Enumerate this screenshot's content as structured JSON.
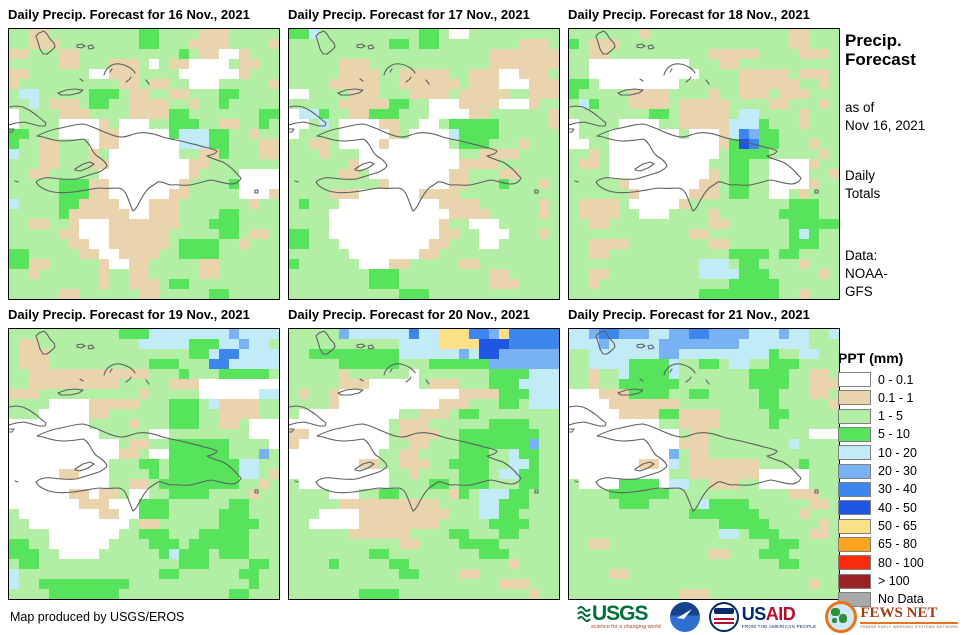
{
  "palette": {
    "w": "#ffffff",
    "t": "#e9d4ae",
    "g": "#b2efa4",
    "G": "#57e45c",
    "c": "#c2ebf8",
    "b": "#79b2f2",
    "B": "#3c86ee",
    "D": "#1e56e6",
    "y": "#fbe085",
    "o": "#fca41c",
    "r": "#fb2b0d",
    "R": "#9b2222",
    "n": "#a9a9a9"
  },
  "panels": [
    {
      "title": "Daily Precip. Forecast for 16 Nov., 2021",
      "grid": [
        "ggttgggggggggGGggggtttggggg",
        "ggtttggggggggGGgggttttggggt",
        "ttgggttggggggggggGgttwwtggg",
        "gggggttgggtttgwgttwwwwgttgg",
        "ttggggggwwtttggggwwwwwwtggg",
        "tggggggggggttgttggwwwgggggtt",
        "gccgggggGGGgttggttgggGGgggg",
        "ggcgtttgGGggttttggtggGggggg",
        "wggggtttggggttttGGgggggggGG",
        "wggggwwwwtgwwwggGGGggttggGg",
        "GGgggwwwwttwwwwwGcccGGggtgg",
        "GggttgggwttwwwwwwcccGGgggtt",
        "cggttgggtgwwwwwwwggttGgggtt",
        "gggttgggttwwwwwwwwttggggggg",
        "ggttgggggwwwwwwwwwtggggwwww",
        "gggggGGGttwwwwwwwtggggGwwww",
        "gggggGGGttwwwwwwttgggggwwwt",
        "cggggGGttttwwwtttgggggggtgg",
        "gggggGttttttwwtttggggGGgggg",
        "ggttggtwwwtttttttgggGGGgggg",
        "gggggttwwwttttttgggggGGgttg",
        "ggggggttwwttttttgGGGGggtggg",
        "GGgggggttwwttttggGGGGgggggg",
        "GGttgggggtwwttgggggttgggggg",
        "ggtggggggtggttgggggttgggggg",
        "gggggggggtggtttgGGggggggggg",
        "gggggttggggggttgggggGGggggg"
      ]
    },
    {
      "title": "Daily Precip. Forecast for 17 Nov., 2021",
      "grid": [
        "GGcggggggggggGGgwwggggggggg",
        "ggggggggggGGgGGggggggggtttg",
        "ggggggggggggggggggggttttttt",
        "gggggtttggggggggggggtttttttg",
        "gggggttttggtttttggtttwwtttg",
        "ggggtttttggttttttgtttwwwttt",
        "wwggggtttgggttttgtttttggttt",
        "gggggtttttGGggwwwttttwwwtgg",
        "wccGggttGGGgggwwwwttggggggt",
        "wwgcgwwwwttggwwgGGGGGgggggt",
        "wggggwwwwwtgwwwwcGGGGgggggg",
        "ggttgwwwwtwwwwwwgGGGgggtggg",
        "gggtgggwwwwwwwwwwggttttgggg",
        "ggggggtwwwwwwwwwwttttgggggg",
        "gggggttgwwwwwwwwttgggttgggg",
        "gggggggggtwwwwwwttgggGgggtg",
        "ggggtttwwwwwwttttgggggggggg",
        "gGgggwwwwwwwwwwttttggggggtg",
        "ggggwwwwwwwwwwwwttttgggggtg",
        "ggggwwwwwwwwwwwtggwwwggggg g",
        "GGggwwwwwwwwwwwttggwwwgggtg",
        "GGgggwwwwwwwwwttgggwwgggggg",
        "ggggggwwwwwwwttgggggggggggg",
        "Gggggggwwwttgggggttgggggggg",
        "ggggggggGGGgggggggggttggggg",
        "ggggggggGGGgggggggggtttgggg",
        "gggggggggggGGGgggggggggggg g"
      ]
    },
    {
      "title": "Daily Precip. Forecast for 18 Nov., 2021",
      "grid": [
        "gggggggtggggggggggggggttggg",
        "Ggtttgggggggggggggggggttggg",
        "ggttggggggggggtttttggggtttg",
        "ggwwwwwwwwwwgggttgggggggggg",
        "ggwwwwwwwwwwwggggtttttgtttg",
        "GGgwwwwwwwwggggggttttttggtg",
        "Ggggggttttggggtggtttgtttggg",
        "gcGgggttttgtttttggggttgggtg",
        "ggggggggGGgtttttgccggggtggg",
        "wggggwwwwggtttttcccGgggtggg",
        "wgggwwwwwwwgwwwtcBbGGgggggg",
        "wwggwwwwwwwwwwwtGDBGGgggtgg",
        "ggtgwwwwwwwwwwwgGGGGgggggtg",
        "gttgwwwwwwwwwwggGGggwwwwtgg",
        "ggggwwwwwwwwwwtgGGggwwwwggt",
        "gggggtwwwwwwwttgGGggwwwwtgg",
        "ggggggtwwwwwtttgGGggwwgtggg",
        "gttttgwwwwwtggggggggggGGGgg",
        "gttttggwwwggggtggggggGGGGgg",
        "ggttggggggggggttggggggGGGGGgg",
        "ggggggggggggttggggggggGcGgg",
        "ggttttggggggggttggggggGGGggg",
        "ggttggggggggggggGGGGgGGgggg",
        "gggggggggggggcccgGGggggtggg",
        "ggttgggggggggccccGGGgggggtg",
        "ggtgggggggggggggGGGGGgggggg",
        "gggggggggggggGGGGGGGGggtggg"
      ]
    },
    {
      "title": "Daily Precip. Forecast for 19 Nov., 2021",
      "grid": [
        "gggggggggggGGGccccccccbcccc",
        "gttggggggggggcccccGGGccbcc",
        "gtttggggggggggggggGGcBBccccc",
        "gtttggggggggggGGGgggBBccccc",
        "ggttttttttttttgggGgggGGGGGg",
        "ggtttttttttgggggtttwwwwwwww",
        "tttggggggggggtgggggwwwwwwcc",
        "ggggwwwwtttttgggGGGgcttttgg",
        "gggwwwwwttggggggGGGggttttgg",
        "wwwwwwwwggggtgggGGGggttgwww",
        "wwwwwwwwwgggggwwggggggggwww",
        "wwwwwwwwwwwgttggGGGGGGggggw",
        "wwwwwwwwwwwttgwwGGGGGGgggbg",
        "wwwwwwwwwwgggGGgGGGGGGGccgg",
        "wwwwwttwwwggggGgGGGGGGGccgt",
        "wwwwwwwwwwggttgGGGGGGGGggtg",
        "wwwwwwttwttgwwggGGGGggggtgg",
        "wwwwwwwtttwwwGGGggggggGGggg",
        "gwwwwwwwwttwwGGGgggggGGGggg",
        "ggwwwwwwwwwwgttggggggGGGGggg",
        "ggggwwwwwwwggGGGgggGGGGGggg",
        "GGggwwwwwwggggGGGgGGGGGGggg",
        "GGGggwwwwggggggGcGGGgGGGggg",
        "gGGggggggggggggggGGGggggGGg",
        "cggggggggggggggGGggggggGGggg",
        "cggGGGGGGGGGggggggggggggGgg",
        "ggggGGGGGGGgggggggggggGGgggg"
      ]
    },
    {
      "title": "Daily Precip. Forecast for 20 Nov., 2021",
      "grid": [
        "gggggbccccccBccyyyBBbyBBBBB",
        "gggggggggggccccyyyyDDDBBBBB",
        "ggGGGGGGGGGccccccbcDDbbbbbb",
        "gggggGGGGGGgggGGGGGGbbbbbbb",
        "gggggtggggggwgggggggGGGGccc",
        "gggggtttwwwwwgtttgggGGGcccc",
        "gtggtwwwwwwwwwwwwttttGGGccc",
        "ggggtwwwwwwwwwwtttgggGGgccc",
        "gwwwwwwwwwwggtttgGGgggggggg",
        "wwwwwwwwwwgtttggggggGGGGggg",
        "ttwwwwwwwwgttttggGGGGGGGGgg",
        "twwwwwwwwwggttgggGGGGGGGbgg",
        "wwwwwwwwwggttggggGGGggcGGgg",
        "wwwwwwwttggtttggGGGGggccGgg",
        "wwwwwwwwwwggtggggGGGgccGGgg",
        "gwwwwwwwwwggggGGgGGGgggGGgg",
        "ggggwwwggGGgggggtGgcccGGggg",
        "gggggttttttttttggggccGGGggg",
        "gggwwwwtttttttttgggccGGgggg",
        "ggwwwwwttttttttgggggGGGGggg",
        "ggggggttttttggggGGgggGGgggg",
        "gggggggggggttggggGGGGgggggg",
        "ggggggggGGgggggggggGGGgggggg",
        "ggggGgggggGGggggggggggtgggg",
        "gggggggggggGGggggttggggggggg",
        "gggggggggggggggggggggtttggg",
        "gggggggGGGGgggggggggggggtgg"
      ]
    },
    {
      "title": "Daily Precip. Forecast for 21 Nov., 2021",
      "grid": [
        "ccbBBbbbccbbBBbbbbcccbccggc",
        "cccbcccccbbbbbbbbcccccccggg",
        "ggcccccccbbcccccccccGggccgg",
        "ggccccGGGGcggGGgccggGGGgggg",
        "ggtggcGGGGcgggggggGGGGggttg",
        "ggtggGGGGGGgggggggGGGGggttt",
        "wwwtttGGGGggGGgggggGGgggttg",
        "wwwwtttttttggggggggGGgggggt",
        "wwwwwttttGGttttgggggGGggggg",
        "wwwwwwwwwggttttgggggGgggggg",
        "wwwwwwwwwwwgttggggggggggwww",
        "wwwwwwwwwwwtttgggggggg cgggg",
        "wwwwwwwwwwbgttgggggggggggggg",
        "wwwwwwwttwcgtttttttggggGggg",
        "wwwwwwwwwwggtttttttwwwwwggg",
        "gwwwwGGGGwccggtttggwwwwwggg",
        "ggggGGGGGGgggggggggggg tttgg",
        "gggggGGGgggggcGGGGggggggttg",
        "gggggggggggg GGGGGGGggggtggg",
        "ggggggggggggggg GGGGGgggggtg",
        "gggggggggggggggccgGGGgggttgg",
        "ggttgggggggggggggggg GGGggggg",
        "gggggggggggggg ttgggGGGggggg",
        "ggggggggggggggggggggg GGggggg",
        "ggggttgggggggggggggggggggg g",
        "ggggggggggggggggggggggggtggg",
        "gggggggggggtttgggggggggggg g"
      ]
    }
  ],
  "sidebar": {
    "title_lines": [
      "Precip.",
      "Forecast"
    ],
    "asof_lines": [
      "as of",
      "Nov 16, 2021"
    ],
    "totals_lines": [
      "Daily",
      "Totals"
    ],
    "source_lines": [
      "Data:",
      "NOAA-",
      "GFS"
    ]
  },
  "legend": {
    "title": "PPT (mm)",
    "items": [
      {
        "label": "0 - 0.1",
        "key": "w"
      },
      {
        "label": "0.1 - 1",
        "key": "t"
      },
      {
        "label": "1 - 5",
        "key": "g"
      },
      {
        "label": "5 - 10",
        "key": "G"
      },
      {
        "label": "10 - 20",
        "key": "c"
      },
      {
        "label": "20 - 30",
        "key": "b"
      },
      {
        "label": "30 - 40",
        "key": "B"
      },
      {
        "label": "40 - 50",
        "key": "D"
      },
      {
        "label": "50 - 65",
        "key": "y"
      },
      {
        "label": "65 - 80",
        "key": "o"
      },
      {
        "label": "80 - 100",
        "key": "r"
      },
      {
        "label": "> 100",
        "key": "R"
      },
      {
        "label": "No Data",
        "key": "n"
      }
    ]
  },
  "footer": {
    "credit": "Map produced by USGS/EROS",
    "usgs_text": "USGS",
    "usgs_tagline": "science for a changing world",
    "usaid_us": "US",
    "usaid_aid": "AID",
    "usaid_tagline": "FROM THE AMERICAN PEOPLE",
    "fews_text": "FEWS NET",
    "fews_tagline": "FAMINE EARLY WARNING SYSTEMS NETWORK"
  }
}
